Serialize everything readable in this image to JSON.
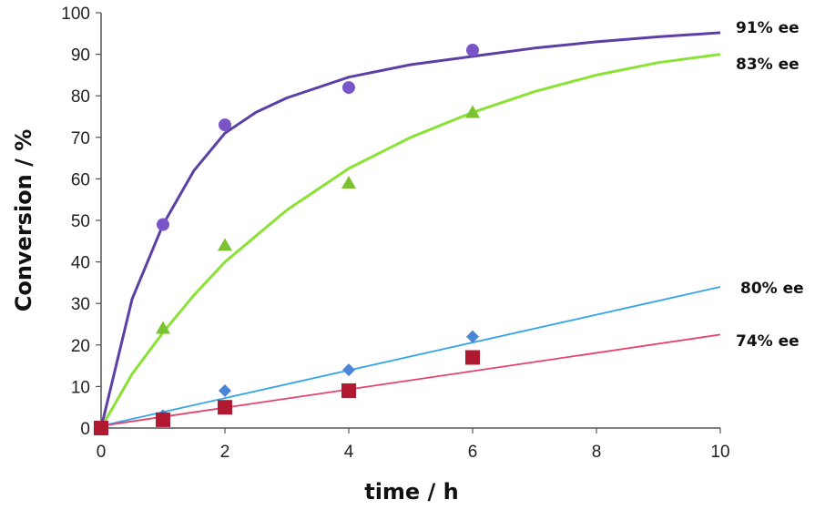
{
  "chart_data": {
    "type": "scatter",
    "title": "",
    "xlabel": "time / h",
    "ylabel": "Conversion / %",
    "xlim": [
      0,
      10
    ],
    "ylim": [
      0,
      100
    ],
    "x_ticks": [
      0,
      2,
      4,
      6,
      8,
      10
    ],
    "y_ticks": [
      0,
      10,
      20,
      30,
      40,
      50,
      60,
      70,
      80,
      90,
      100
    ],
    "grid": false,
    "series": [
      {
        "label": "91% ee",
        "color": "#5b3fa6",
        "marker": "circle",
        "marker_color": "#7a55c8",
        "points": {
          "x": [
            0,
            1,
            2,
            4,
            6
          ],
          "y": [
            0,
            49,
            73,
            82,
            91
          ]
        },
        "fit": {
          "x": [
            0,
            0.5,
            1,
            1.5,
            2,
            2.5,
            3,
            4,
            5,
            6,
            7,
            8,
            9,
            10
          ],
          "y": [
            0,
            31,
            49,
            62,
            71,
            76,
            79.5,
            84.5,
            87.5,
            89.5,
            91.5,
            93,
            94.2,
            95.2
          ]
        }
      },
      {
        "label": "83% ee",
        "color": "#8ae234",
        "marker": "triangle",
        "marker_color": "#7cc130",
        "points": {
          "x": [
            0,
            1,
            2,
            4,
            6
          ],
          "y": [
            0,
            24,
            44,
            59,
            76
          ]
        },
        "fit": {
          "x": [
            0,
            0.5,
            1,
            1.5,
            2,
            3,
            4,
            5,
            6,
            7,
            8,
            9,
            10
          ],
          "y": [
            0,
            13,
            23,
            32,
            40,
            52.5,
            62.5,
            70,
            76,
            81,
            85,
            88,
            90
          ]
        }
      },
      {
        "label": "80% ee",
        "color": "#34a4e8",
        "marker": "diamond",
        "marker_color": "#4a86d8",
        "points": {
          "x": [
            0,
            1,
            2,
            4,
            6
          ],
          "y": [
            0,
            3,
            9,
            14,
            22
          ]
        },
        "fit": {
          "x": [
            0,
            10
          ],
          "y": [
            0.5,
            34
          ]
        }
      },
      {
        "label": "74% ee",
        "color": "#e8406a",
        "marker": "square",
        "marker_color": "#b0192f",
        "points": {
          "x": [
            0,
            1,
            2,
            4,
            6
          ],
          "y": [
            0,
            2,
            5,
            9,
            17
          ]
        },
        "fit": {
          "x": [
            0,
            10
          ],
          "y": [
            0.5,
            22.5
          ]
        }
      }
    ]
  }
}
